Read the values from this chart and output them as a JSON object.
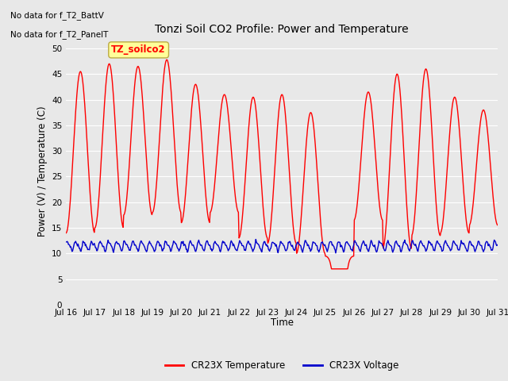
{
  "title": "Tonzi Soil CO2 Profile: Power and Temperature",
  "ylabel": "Power (V) / Temperature (C)",
  "xlabel": "Time",
  "top_left_text1": "No data for f_T2_BattV",
  "top_left_text2": "No data for f_T2_PanelT",
  "legend_box_label": "TZ_soilco2",
  "ylim": [
    0,
    52
  ],
  "yticks": [
    0,
    5,
    10,
    15,
    20,
    25,
    30,
    35,
    40,
    45,
    50
  ],
  "xtick_labels": [
    "Jul 16",
    "Jul 17",
    "Jul 18",
    "Jul 19",
    "Jul 20",
    "Jul 21",
    "Jul 22",
    "Jul 23",
    "Jul 24",
    "Jul 25",
    "Jul 26",
    "Jul 27",
    "Jul 28",
    "Jul 29",
    "Jul 30",
    "Jul 31"
  ],
  "bg_color": "#e8e8e8",
  "plot_bg_color": "#e8e8e8",
  "red_line_color": "#ff0000",
  "blue_line_color": "#0000cc",
  "legend_label_red": "CR23X Temperature",
  "legend_label_blue": "CR23X Voltage",
  "grid_color": "#ffffff",
  "legend_box_bg": "#ffff99",
  "legend_box_edge": "#bbaa44",
  "red_peaks": [
    45.5,
    47.0,
    46.5,
    47.8,
    43.0,
    41.0,
    40.5,
    41.0,
    37.5,
    7.5,
    41.5,
    45.0,
    46.0,
    40.5,
    38.0
  ],
  "red_troughs": [
    14.0,
    15.0,
    17.5,
    18.0,
    16.0,
    18.0,
    13.0,
    12.0,
    10.0,
    9.5,
    16.5,
    11.0,
    13.5,
    14.0,
    15.5
  ],
  "blue_base": 11.5,
  "blue_amp": 0.8,
  "n_days": 15
}
